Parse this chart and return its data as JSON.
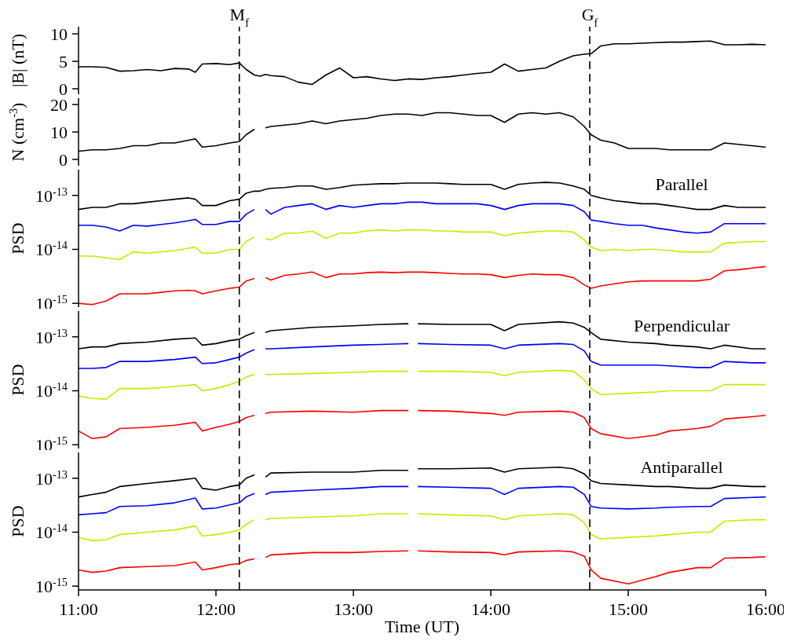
{
  "chart_data": [
    {
      "type": "line",
      "ylabel": "|B| (nT)",
      "xlim": [
        11,
        16
      ],
      "xticks": [
        {
          "value": 11,
          "label": null
        },
        {
          "value": 12,
          "label": null
        },
        {
          "value": 13,
          "label": null
        },
        {
          "value": 14,
          "label": null
        },
        {
          "value": 15,
          "label": null
        },
        {
          "value": 16,
          "label": null
        }
      ],
      "ylim": [
        -1,
        11.3
      ],
      "yticks": [
        0,
        5,
        10
      ],
      "tick_labels": "y",
      "x": [
        11.0,
        11.1,
        11.2,
        11.3,
        11.4,
        11.5,
        11.6,
        11.7,
        11.8,
        11.85,
        11.9,
        12.0,
        12.1,
        12.17,
        12.22,
        12.28,
        12.32,
        12.36,
        12.4,
        12.5,
        12.6,
        12.7,
        12.8,
        12.9,
        13.0,
        13.1,
        13.2,
        13.3,
        13.4,
        13.5,
        13.6,
        13.7,
        13.8,
        13.9,
        14.0,
        14.1,
        14.2,
        14.3,
        14.4,
        14.5,
        14.6,
        14.68,
        14.73,
        14.8,
        14.9,
        15.0,
        15.1,
        15.2,
        15.3,
        15.4,
        15.5,
        15.6,
        15.7,
        15.8,
        15.9,
        16.0
      ],
      "series": [
        {
          "color": "#000000",
          "values": [
            4.0,
            4.0,
            3.9,
            3.2,
            3.3,
            3.5,
            3.3,
            3.7,
            3.6,
            3.0,
            4.5,
            4.6,
            4.4,
            4.7,
            3.5,
            2.5,
            2.3,
            2.6,
            2.4,
            2.2,
            1.2,
            0.8,
            2.5,
            3.8,
            2.0,
            2.2,
            1.8,
            1.5,
            1.8,
            1.7,
            2.0,
            2.2,
            2.5,
            2.8,
            3.0,
            4.5,
            3.2,
            3.5,
            3.8,
            5.0,
            6.0,
            6.3,
            6.4,
            7.8,
            8.2,
            8.2,
            8.3,
            8.4,
            8.5,
            8.5,
            8.6,
            8.7,
            8.0,
            8.0,
            8.1,
            8.0
          ]
        }
      ],
      "ref_lines": [
        {
          "axis": "x",
          "value": 12.17,
          "label": "M$_{f}$",
          "line_style": "dashed",
          "color": "#000000"
        },
        {
          "axis": "x",
          "value": 14.72,
          "label": "G$_{f}$",
          "line_style": "dashed",
          "color": "#000000"
        }
      ]
    },
    {
      "type": "line",
      "ylabel": "N (cm$^{-3}$)",
      "xlim": [
        11,
        16
      ],
      "xticks": [
        {
          "value": 11,
          "label": null
        },
        {
          "value": 12,
          "label": null
        },
        {
          "value": 13,
          "label": null
        },
        {
          "value": 14,
          "label": null
        },
        {
          "value": 15,
          "label": null
        },
        {
          "value": 16,
          "label": null
        }
      ],
      "ylim": [
        -2.3,
        22.3
      ],
      "yticks": [
        0,
        10,
        20
      ],
      "tick_labels": "y",
      "x": [
        11.0,
        11.1,
        11.2,
        11.3,
        11.4,
        11.5,
        11.6,
        11.7,
        11.8,
        11.85,
        11.9,
        12.0,
        12.1,
        12.17,
        12.22,
        12.28,
        12.32,
        12.36,
        12.4,
        12.5,
        12.6,
        12.7,
        12.8,
        12.9,
        13.0,
        13.1,
        13.2,
        13.3,
        13.4,
        13.5,
        13.6,
        13.7,
        13.8,
        13.9,
        14.0,
        14.1,
        14.2,
        14.3,
        14.4,
        14.5,
        14.6,
        14.68,
        14.73,
        14.8,
        14.9,
        15.0,
        15.1,
        15.2,
        15.3,
        15.4,
        15.5,
        15.6,
        15.7,
        15.8,
        15.9,
        16.0
      ],
      "series": [
        {
          "color": "#000000",
          "values": [
            3,
            3.5,
            3.5,
            4,
            5,
            5,
            6,
            6,
            7,
            7.5,
            4.5,
            5,
            6,
            6.5,
            9,
            11,
            null,
            11.5,
            12,
            12.5,
            13,
            14,
            13,
            14,
            14.5,
            15,
            16,
            16.5,
            16.5,
            16,
            17,
            17,
            16.5,
            16,
            16,
            13.5,
            16.5,
            17,
            16.5,
            17,
            15.5,
            12,
            9,
            7,
            6,
            4,
            4,
            4,
            3.5,
            3.5,
            3.5,
            3.5,
            6,
            5.5,
            5,
            4.5
          ]
        }
      ],
      "ref_lines": [
        {
          "axis": "x",
          "value": 12.17,
          "line_style": "dashed",
          "color": "#000000"
        },
        {
          "axis": "x",
          "value": 14.72,
          "line_style": "dashed",
          "color": "#000000"
        }
      ]
    },
    {
      "type": "line",
      "title": "Parallel",
      "ylabel": "PSD",
      "log": "y",
      "xlim": [
        11,
        16
      ],
      "xticks": [
        {
          "value": 11,
          "label": null
        },
        {
          "value": 12,
          "label": null
        },
        {
          "value": 13,
          "label": null
        },
        {
          "value": 14,
          "label": null
        },
        {
          "value": 15,
          "label": null
        },
        {
          "value": 16,
          "label": null
        }
      ],
      "ylim": [
        8.5e-16,
        3e-13
      ],
      "yticks": [
        {
          "value": 1e-15,
          "label": "10$^{-15}$"
        },
        {
          "value": 1e-14,
          "label": "10$^{-14}$"
        },
        {
          "value": 1e-13,
          "label": "10$^{-13}$"
        }
      ],
      "tick_labels": "y",
      "x": [
        11.0,
        11.1,
        11.2,
        11.3,
        11.4,
        11.5,
        11.6,
        11.7,
        11.8,
        11.85,
        11.9,
        12.0,
        12.1,
        12.17,
        12.22,
        12.28,
        12.32,
        12.36,
        12.4,
        12.5,
        12.6,
        12.7,
        12.8,
        12.9,
        13.0,
        13.1,
        13.2,
        13.3,
        13.4,
        13.5,
        13.6,
        13.7,
        13.8,
        13.9,
        14.0,
        14.1,
        14.2,
        14.3,
        14.4,
        14.5,
        14.6,
        14.68,
        14.73,
        14.8,
        14.9,
        15.0,
        15.1,
        15.2,
        15.3,
        15.4,
        15.5,
        15.6,
        15.7,
        15.8,
        15.9,
        16.0
      ],
      "series": [
        {
          "color": "#000000",
          "values": [
            5.5e-14,
            6e-14,
            6e-14,
            7e-14,
            7e-14,
            7.5e-14,
            8e-14,
            8.5e-14,
            9e-14,
            8.5e-14,
            6.5e-14,
            6.5e-14,
            8e-14,
            8.5e-14,
            1.1e-13,
            1.2e-13,
            1.2e-13,
            1.3e-13,
            1.35e-13,
            1.4e-13,
            1.5e-13,
            1.5e-13,
            1.3e-13,
            1.4e-13,
            1.55e-13,
            1.6e-13,
            1.65e-13,
            1.65e-13,
            1.7e-13,
            1.7e-13,
            1.7e-13,
            1.65e-13,
            1.6e-13,
            1.6e-13,
            1.6e-13,
            1.3e-13,
            1.6e-13,
            1.7e-13,
            1.75e-13,
            1.7e-13,
            1.5e-13,
            1.3e-13,
            1e-13,
            9e-14,
            8e-14,
            7.5e-14,
            7e-14,
            7e-14,
            6.5e-14,
            6e-14,
            5.5e-14,
            5.5e-14,
            6.5e-14,
            6e-14,
            6e-14,
            6e-14
          ]
        },
        {
          "color": "#0000ff",
          "values": [
            2.8e-14,
            2.8e-14,
            2.6e-14,
            2.2e-14,
            2.8e-14,
            2.7e-14,
            2.9e-14,
            3.1e-14,
            3.4e-14,
            3.6e-14,
            2.9e-14,
            2.9e-14,
            3.3e-14,
            3.3e-14,
            4.5e-14,
            5.5e-14,
            null,
            5.5e-14,
            4.5e-14,
            6e-14,
            6.5e-14,
            7e-14,
            5.5e-14,
            6.5e-14,
            6e-14,
            6.5e-14,
            7e-14,
            7e-14,
            7.5e-14,
            7.5e-14,
            7e-14,
            7e-14,
            7e-14,
            7e-14,
            6.5e-14,
            5.5e-14,
            6.5e-14,
            7e-14,
            7e-14,
            7e-14,
            6.5e-14,
            5e-14,
            3.5e-14,
            3.3e-14,
            3e-14,
            2.8e-14,
            2.8e-14,
            2.5e-14,
            2.3e-14,
            2.1e-14,
            2e-14,
            2.1e-14,
            3e-14,
            3e-14,
            3e-14,
            3e-14
          ]
        },
        {
          "color": "#bfee00",
          "values": [
            7.5e-15,
            7.5e-15,
            7e-15,
            6.5e-15,
            9e-15,
            8.5e-15,
            9e-15,
            9.5e-15,
            1.05e-14,
            1.1e-14,
            8.5e-15,
            8.5e-15,
            1e-14,
            1e-14,
            1.4e-14,
            1.7e-14,
            null,
            1.6e-14,
            1.5e-14,
            2e-14,
            2e-14,
            2.2e-14,
            1.6e-14,
            2e-14,
            2e-14,
            2.2e-14,
            2.3e-14,
            2.2e-14,
            2.3e-14,
            2.3e-14,
            2.2e-14,
            2.2e-14,
            2.1e-14,
            2.1e-14,
            2.1e-14,
            1.8e-14,
            2e-14,
            2.1e-14,
            2.2e-14,
            2.2e-14,
            2.1e-14,
            1.5e-14,
            1.1e-14,
            9.5e-15,
            1e-14,
            9.5e-15,
            1e-14,
            1e-14,
            9.5e-15,
            9e-15,
            9e-15,
            9e-15,
            1.3e-14,
            1.35e-14,
            1.4e-14,
            1.4e-14
          ]
        },
        {
          "color": "#ff0000",
          "values": [
            1e-15,
            9.5e-16,
            1.1e-15,
            1.5e-15,
            1.5e-15,
            1.5e-15,
            1.6e-15,
            1.7e-15,
            1.75e-15,
            1.7e-15,
            1.5e-15,
            1.7e-15,
            1.9e-15,
            2e-15,
            2.6e-15,
            2.9e-15,
            null,
            3e-15,
            2.7e-15,
            3.3e-15,
            3.5e-15,
            3.8e-15,
            3e-15,
            3.5e-15,
            3.5e-15,
            3.7e-15,
            3.8e-15,
            3.7e-15,
            3.8e-15,
            3.8e-15,
            3.7e-15,
            3.6e-15,
            3.5e-15,
            3.5e-15,
            3.4e-15,
            3e-15,
            3.3e-15,
            3.5e-15,
            3.4e-15,
            3.4e-15,
            3e-15,
            2.2e-15,
            1.9e-15,
            2.1e-15,
            2.3e-15,
            2.5e-15,
            2.6e-15,
            2.6e-15,
            2.6e-15,
            2.6e-15,
            2.6e-15,
            2.8e-15,
            4e-15,
            4.2e-15,
            4.5e-15,
            4.8e-15
          ]
        }
      ],
      "ref_lines": [
        {
          "axis": "x",
          "value": 12.17,
          "line_style": "dashed",
          "color": "#000000"
        },
        {
          "axis": "x",
          "value": 14.72,
          "line_style": "dashed",
          "color": "#000000"
        }
      ]
    },
    {
      "type": "line",
      "title": "Perpendicular",
      "ylabel": "PSD",
      "log": "y",
      "xlim": [
        11,
        16
      ],
      "xticks": [
        {
          "value": 11,
          "label": null
        },
        {
          "value": 12,
          "label": null
        },
        {
          "value": 13,
          "label": null
        },
        {
          "value": 14,
          "label": null
        },
        {
          "value": 15,
          "label": null
        },
        {
          "value": 16,
          "label": null
        }
      ],
      "ylim": [
        8.5e-16,
        3e-13
      ],
      "yticks": [
        {
          "value": 1e-15,
          "label": "10$^{-15}$"
        },
        {
          "value": 1e-14,
          "label": "10$^{-14}$"
        },
        {
          "value": 1e-13,
          "label": "10$^{-13}$"
        }
      ],
      "tick_labels": "y",
      "x": [
        11.0,
        11.1,
        11.2,
        11.3,
        11.5,
        11.7,
        11.85,
        11.9,
        12.0,
        12.1,
        12.17,
        12.22,
        12.28,
        12.32,
        12.36,
        12.4,
        12.7,
        13.0,
        13.2,
        13.4,
        13.43,
        13.47,
        13.7,
        14.0,
        14.1,
        14.2,
        14.5,
        14.6,
        14.68,
        14.73,
        14.8,
        15.0,
        15.2,
        15.3,
        15.5,
        15.6,
        15.7,
        15.9,
        16.0
      ],
      "series": [
        {
          "color": "#000000",
          "values": [
            6e-14,
            6.5e-14,
            6.5e-14,
            7.5e-14,
            8e-14,
            9e-14,
            9.5e-14,
            7e-14,
            7.5e-14,
            8.5e-14,
            9e-14,
            1.05e-13,
            1.2e-13,
            null,
            1.2e-13,
            1.3e-13,
            1.5e-13,
            1.6e-13,
            1.7e-13,
            1.75e-13,
            null,
            1.75e-13,
            1.7e-13,
            1.7e-13,
            1.3e-13,
            1.7e-13,
            1.9e-13,
            1.8e-13,
            1.5e-13,
            1.2e-13,
            9e-14,
            8e-14,
            7.5e-14,
            7e-14,
            6.5e-14,
            6e-14,
            7e-14,
            6e-14,
            6e-14
          ]
        },
        {
          "color": "#0000ff",
          "values": [
            2.6e-14,
            2.6e-14,
            2.7e-14,
            3.5e-14,
            3.5e-14,
            3.8e-14,
            4.2e-14,
            3.2e-14,
            3.3e-14,
            3.8e-14,
            4.2e-14,
            5e-14,
            5.8e-14,
            null,
            6e-14,
            6e-14,
            6.5e-14,
            7e-14,
            7.2e-14,
            7.5e-14,
            null,
            7.5e-14,
            7.2e-14,
            7e-14,
            6e-14,
            7e-14,
            7.5e-14,
            7.2e-14,
            5.5e-14,
            3.5e-14,
            3e-14,
            3e-14,
            3e-14,
            2.9e-14,
            2.7e-14,
            2.7e-14,
            3.5e-14,
            3.3e-14,
            3.3e-14
          ]
        },
        {
          "color": "#bfee00",
          "values": [
            8e-15,
            7.2e-15,
            7e-15,
            1.1e-14,
            1.1e-14,
            1.2e-14,
            1.3e-14,
            1e-14,
            1.1e-14,
            1.3e-14,
            1.5e-14,
            1.8e-14,
            2e-14,
            null,
            2e-14,
            2e-14,
            2.1e-14,
            2.2e-14,
            2.3e-14,
            2.3e-14,
            null,
            2.3e-14,
            2.3e-14,
            2.2e-14,
            1.9e-14,
            2.2e-14,
            2.4e-14,
            2.3e-14,
            1.6e-14,
            1.1e-14,
            8.5e-15,
            9e-15,
            9.5e-15,
            1e-14,
            1e-14,
            1e-14,
            1.3e-14,
            1.3e-14,
            1.3e-14
          ]
        },
        {
          "color": "#ff0000",
          "values": [
            1.8e-15,
            1.3e-15,
            1.4e-15,
            2e-15,
            2.1e-15,
            2.3e-15,
            2.6e-15,
            1.8e-15,
            2.1e-15,
            2.4e-15,
            2.7e-15,
            3.2e-15,
            3.5e-15,
            null,
            3.8e-15,
            4e-15,
            4.2e-15,
            4e-15,
            4.3e-15,
            4.3e-15,
            null,
            4.3e-15,
            4.2e-15,
            3.8e-15,
            3.5e-15,
            4e-15,
            4.2e-15,
            4e-15,
            3.2e-15,
            2e-15,
            1.6e-15,
            1.3e-15,
            1.5e-15,
            1.8e-15,
            2e-15,
            2.2e-15,
            3e-15,
            3.3e-15,
            3.5e-15
          ]
        }
      ],
      "ref_lines": [
        {
          "axis": "x",
          "value": 12.17,
          "line_style": "dashed",
          "color": "#000000"
        },
        {
          "axis": "x",
          "value": 14.72,
          "line_style": "dashed",
          "color": "#000000"
        }
      ]
    },
    {
      "type": "line",
      "title": "Antiparallel",
      "ylabel": "PSD",
      "xlabel": "Time (UT)",
      "log": "y",
      "xlim": [
        11,
        16
      ],
      "xticks": [
        {
          "value": 11,
          "label": "11:00"
        },
        {
          "value": 12,
          "label": "12:00"
        },
        {
          "value": 13,
          "label": "13:00"
        },
        {
          "value": 14,
          "label": "14:00"
        },
        {
          "value": 15,
          "label": "15:00"
        },
        {
          "value": 16,
          "label": "16:00"
        }
      ],
      "ylim": [
        8.5e-16,
        3e-13
      ],
      "yticks": [
        {
          "value": 1e-15,
          "label": "10$^{-15}$"
        },
        {
          "value": 1e-14,
          "label": "10$^{-14}$"
        },
        {
          "value": 1e-13,
          "label": "10$^{-13}$"
        }
      ],
      "x": [
        11.0,
        11.1,
        11.2,
        11.3,
        11.5,
        11.7,
        11.85,
        11.9,
        12.0,
        12.1,
        12.17,
        12.22,
        12.28,
        12.32,
        12.36,
        12.4,
        12.7,
        13.0,
        13.2,
        13.4,
        13.43,
        13.47,
        13.7,
        14.0,
        14.1,
        14.2,
        14.5,
        14.6,
        14.68,
        14.73,
        14.8,
        15.0,
        15.2,
        15.3,
        15.5,
        15.6,
        15.7,
        15.9,
        16.0
      ],
      "series": [
        {
          "color": "#000000",
          "values": [
            4.5e-14,
            5e-14,
            5.5e-14,
            7e-14,
            8e-14,
            9e-14,
            1e-13,
            6.5e-14,
            6e-14,
            7e-14,
            7.5e-14,
            1e-13,
            1.15e-13,
            null,
            1.05e-13,
            1.25e-13,
            1.3e-13,
            1.3e-13,
            1.4e-13,
            1.4e-13,
            null,
            1.5e-13,
            1.5e-13,
            1.55e-13,
            1.3e-13,
            1.5e-13,
            1.6e-13,
            1.5e-13,
            1.2e-13,
            9e-14,
            8e-14,
            7.5e-14,
            7e-14,
            7e-14,
            6.5e-14,
            6.5e-14,
            7.5e-14,
            7e-14,
            7e-14
          ]
        },
        {
          "color": "#0000ff",
          "values": [
            2.1e-14,
            2.2e-14,
            2.3e-14,
            3e-14,
            3.1e-14,
            3.5e-14,
            4.3e-14,
            2.7e-14,
            2.8e-14,
            3.2e-14,
            3.5e-14,
            4.5e-14,
            5.2e-14,
            null,
            5e-14,
            5.5e-14,
            6e-14,
            6.5e-14,
            7e-14,
            7e-14,
            null,
            7e-14,
            6.8e-14,
            6.5e-14,
            5e-14,
            6.5e-14,
            7e-14,
            6.8e-14,
            5e-14,
            3e-14,
            2.8e-14,
            2.7e-14,
            2.8e-14,
            2.9e-14,
            3e-14,
            3e-14,
            4.2e-14,
            4.4e-14,
            4.5e-14
          ]
        },
        {
          "color": "#bfee00",
          "values": [
            8e-15,
            7e-15,
            7.2e-15,
            9e-15,
            1e-14,
            1.1e-14,
            1.3e-14,
            8.5e-15,
            9e-15,
            1e-14,
            1.1e-14,
            1.4e-14,
            1.7e-14,
            null,
            1.7e-14,
            1.8e-14,
            1.9e-14,
            2e-14,
            2.2e-14,
            2.2e-14,
            null,
            2.2e-14,
            2.1e-14,
            2e-14,
            1.7e-14,
            2e-14,
            2.2e-14,
            2.1e-14,
            1.5e-14,
            9e-15,
            7.5e-15,
            8e-15,
            8.5e-15,
            9e-15,
            1e-14,
            1e-14,
            1.6e-14,
            1.7e-14,
            1.7e-14
          ]
        },
        {
          "color": "#ff0000",
          "values": [
            2e-15,
            1.8e-15,
            1.9e-15,
            2.2e-15,
            2.3e-15,
            2.4e-15,
            2.8e-15,
            2e-15,
            2.2e-15,
            2.5e-15,
            2.6e-15,
            3e-15,
            3.2e-15,
            null,
            3.4e-15,
            3.8e-15,
            4.2e-15,
            4.2e-15,
            4.4e-15,
            4.5e-15,
            null,
            4.5e-15,
            4.3e-15,
            4.2e-15,
            3.8e-15,
            4.3e-15,
            4.5e-15,
            4.3e-15,
            3.6e-15,
            2e-15,
            1.4e-15,
            1.1e-15,
            1.5e-15,
            1.8e-15,
            2.2e-15,
            2.2e-15,
            3.3e-15,
            3.4e-15,
            3.5e-15
          ]
        }
      ],
      "ref_lines": [
        {
          "axis": "x",
          "value": 12.17,
          "line_style": "dashed",
          "color": "#000000"
        },
        {
          "axis": "x",
          "value": 14.72,
          "line_style": "dashed",
          "color": "#000000"
        }
      ]
    }
  ]
}
